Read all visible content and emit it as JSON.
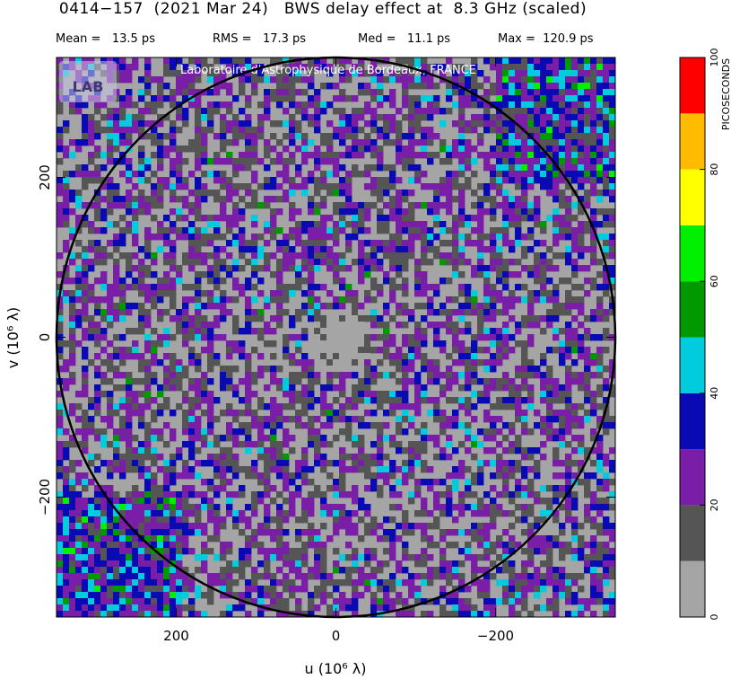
{
  "header": {
    "title": "0414−157  (2021 Mar 24)   BWS delay effect at  8.3 GHz (scaled)",
    "stats": [
      {
        "label": "Mean =",
        "value": "13.5 ps"
      },
      {
        "label": "RMS =",
        "value": "17.3 ps"
      },
      {
        "label": "Med =",
        "value": "11.1 ps"
      },
      {
        "label": "Max =",
        "value": "120.9 ps"
      }
    ]
  },
  "credit": {
    "text": "Laboratoire d'Astrophysique de Bordeaux, FRANCE",
    "logo_text": "LAB",
    "logo_icon": "lab-logo-icon"
  },
  "chart_data": {
    "type": "heatmap",
    "title": "0414−157  (2021 Mar 24)   BWS delay effect at  8.3 GHz (scaled)",
    "xlabel": "u  (10⁶ λ)",
    "ylabel": "v  (10⁶ λ)",
    "xlim": [
      350,
      -350
    ],
    "ylim": [
      -350,
      350
    ],
    "x_ticks": [
      200,
      0,
      -200
    ],
    "x_tick_labels": [
      "200",
      "0",
      "−200"
    ],
    "y_ticks": [
      200,
      0,
      -200
    ],
    "y_tick_labels": [
      "200",
      "0",
      "−200"
    ],
    "circle_radius": 350,
    "colorbar": {
      "label": "PICOSECONDS",
      "min": 0,
      "max": 100,
      "ticks": [
        0,
        20,
        40,
        60,
        80,
        100
      ],
      "tick_labels": [
        "0",
        "20",
        "40",
        "60",
        "80",
        "100"
      ],
      "bins": [
        {
          "from": 0,
          "to": 10,
          "color": "#a5a5a5"
        },
        {
          "from": 10,
          "to": 20,
          "color": "#555555"
        },
        {
          "from": 20,
          "to": 30,
          "color": "#7a1ea8"
        },
        {
          "from": 30,
          "to": 40,
          "color": "#0a0ab4"
        },
        {
          "from": 40,
          "to": 50,
          "color": "#00ccdd"
        },
        {
          "from": 50,
          "to": 60,
          "color": "#009a00"
        },
        {
          "from": 60,
          "to": 70,
          "color": "#00f000"
        },
        {
          "from": 70,
          "to": 80,
          "color": "#ffff00"
        },
        {
          "from": 80,
          "to": 90,
          "color": "#ffbb00"
        },
        {
          "from": 90,
          "to": 100,
          "color": "#ff0000"
        }
      ]
    },
    "stats": {
      "mean_ps": 13.5,
      "rms_ps": 17.3,
      "median_ps": 11.1,
      "max_ps": 120.9
    }
  }
}
